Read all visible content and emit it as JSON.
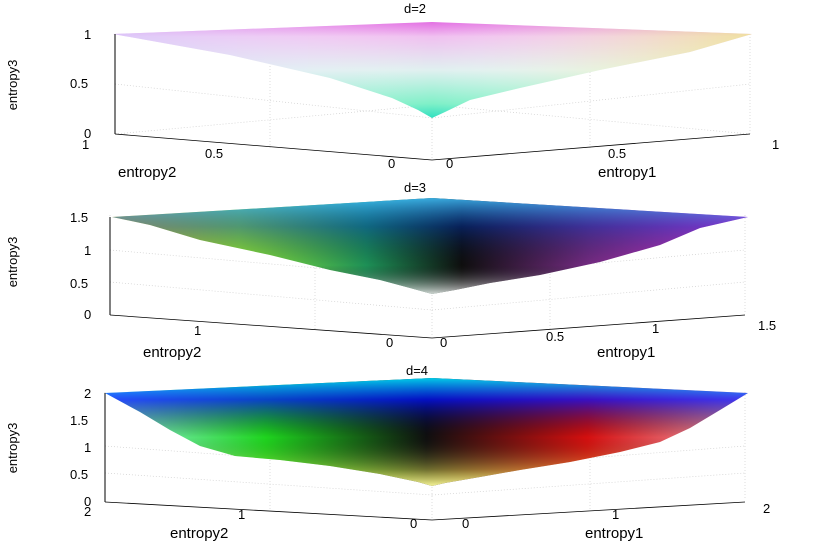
{
  "chart_data": [
    {
      "type": "surface3d",
      "title": "d=2",
      "xlabel": "entropy1",
      "ylabel": "entropy2",
      "zlabel": "entropy3",
      "x_range": [
        0,
        1
      ],
      "y_range": [
        0,
        1
      ],
      "z_range": [
        0,
        1
      ],
      "x_ticks": [
        "0",
        "0.5",
        "1"
      ],
      "y_ticks": [
        "0",
        "0.5",
        "1"
      ],
      "z_ticks": [
        "0",
        "0.5",
        "1"
      ],
      "surface": {
        "rim_z": 1,
        "min_z": 0.2
      },
      "colors": {
        "rim": "#e060e0",
        "mid": "#d8f0e8",
        "low": "#40e0c0"
      },
      "grid": true
    },
    {
      "type": "surface3d",
      "title": "d=3",
      "xlabel": "entropy1",
      "ylabel": "entropy2",
      "zlabel": "entropy3",
      "x_range": [
        0,
        1.5
      ],
      "y_range": [
        0,
        1.5
      ],
      "z_range": [
        0,
        1.5
      ],
      "x_ticks": [
        "0",
        "0.5",
        "1",
        "1.5"
      ],
      "y_ticks": [
        "0",
        "1"
      ],
      "z_ticks": [
        "0",
        "0.5",
        "1",
        "1.5"
      ],
      "surface": {
        "rim_z": 1.58,
        "min_z": 0.3
      },
      "colors": {
        "rim": "#30a0ff",
        "mid": "#101010",
        "low": "#ffd0ff"
      },
      "grid": true
    },
    {
      "type": "surface3d",
      "title": "d=4",
      "xlabel": "entropy1",
      "ylabel": "entropy2",
      "zlabel": "entropy3",
      "x_range": [
        0,
        2
      ],
      "y_range": [
        0,
        2
      ],
      "z_range": [
        0,
        2
      ],
      "x_ticks": [
        "0",
        "1",
        "2"
      ],
      "y_ticks": [
        "0",
        "1",
        "2"
      ],
      "z_ticks": [
        "0",
        "0.5",
        "1",
        "1.5",
        "2"
      ],
      "surface": {
        "rim_z": 2,
        "min_z": 0.1
      },
      "colors": {
        "rim": "#00f0ff",
        "mid": "#0000ff",
        "low": "#ffff80"
      },
      "grid": true
    }
  ]
}
